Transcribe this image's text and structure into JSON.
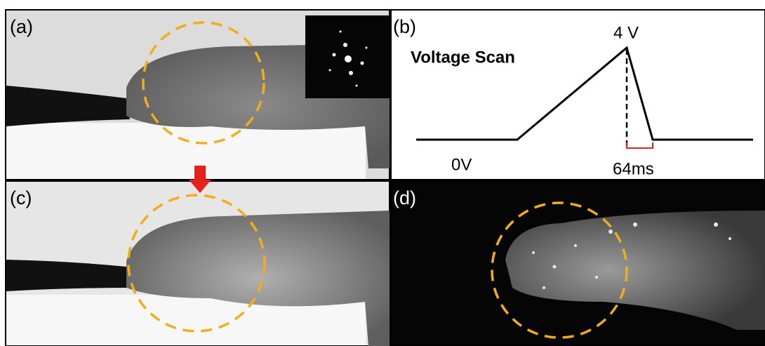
{
  "panels": [
    {
      "label": "(a)"
    },
    {
      "label": "(b)",
      "title": "Voltage Scan",
      "peak_label": "4 V",
      "base_label": "0V",
      "duration_label": "64ms"
    },
    {
      "label": "(c)"
    },
    {
      "label": "(d)"
    }
  ]
}
